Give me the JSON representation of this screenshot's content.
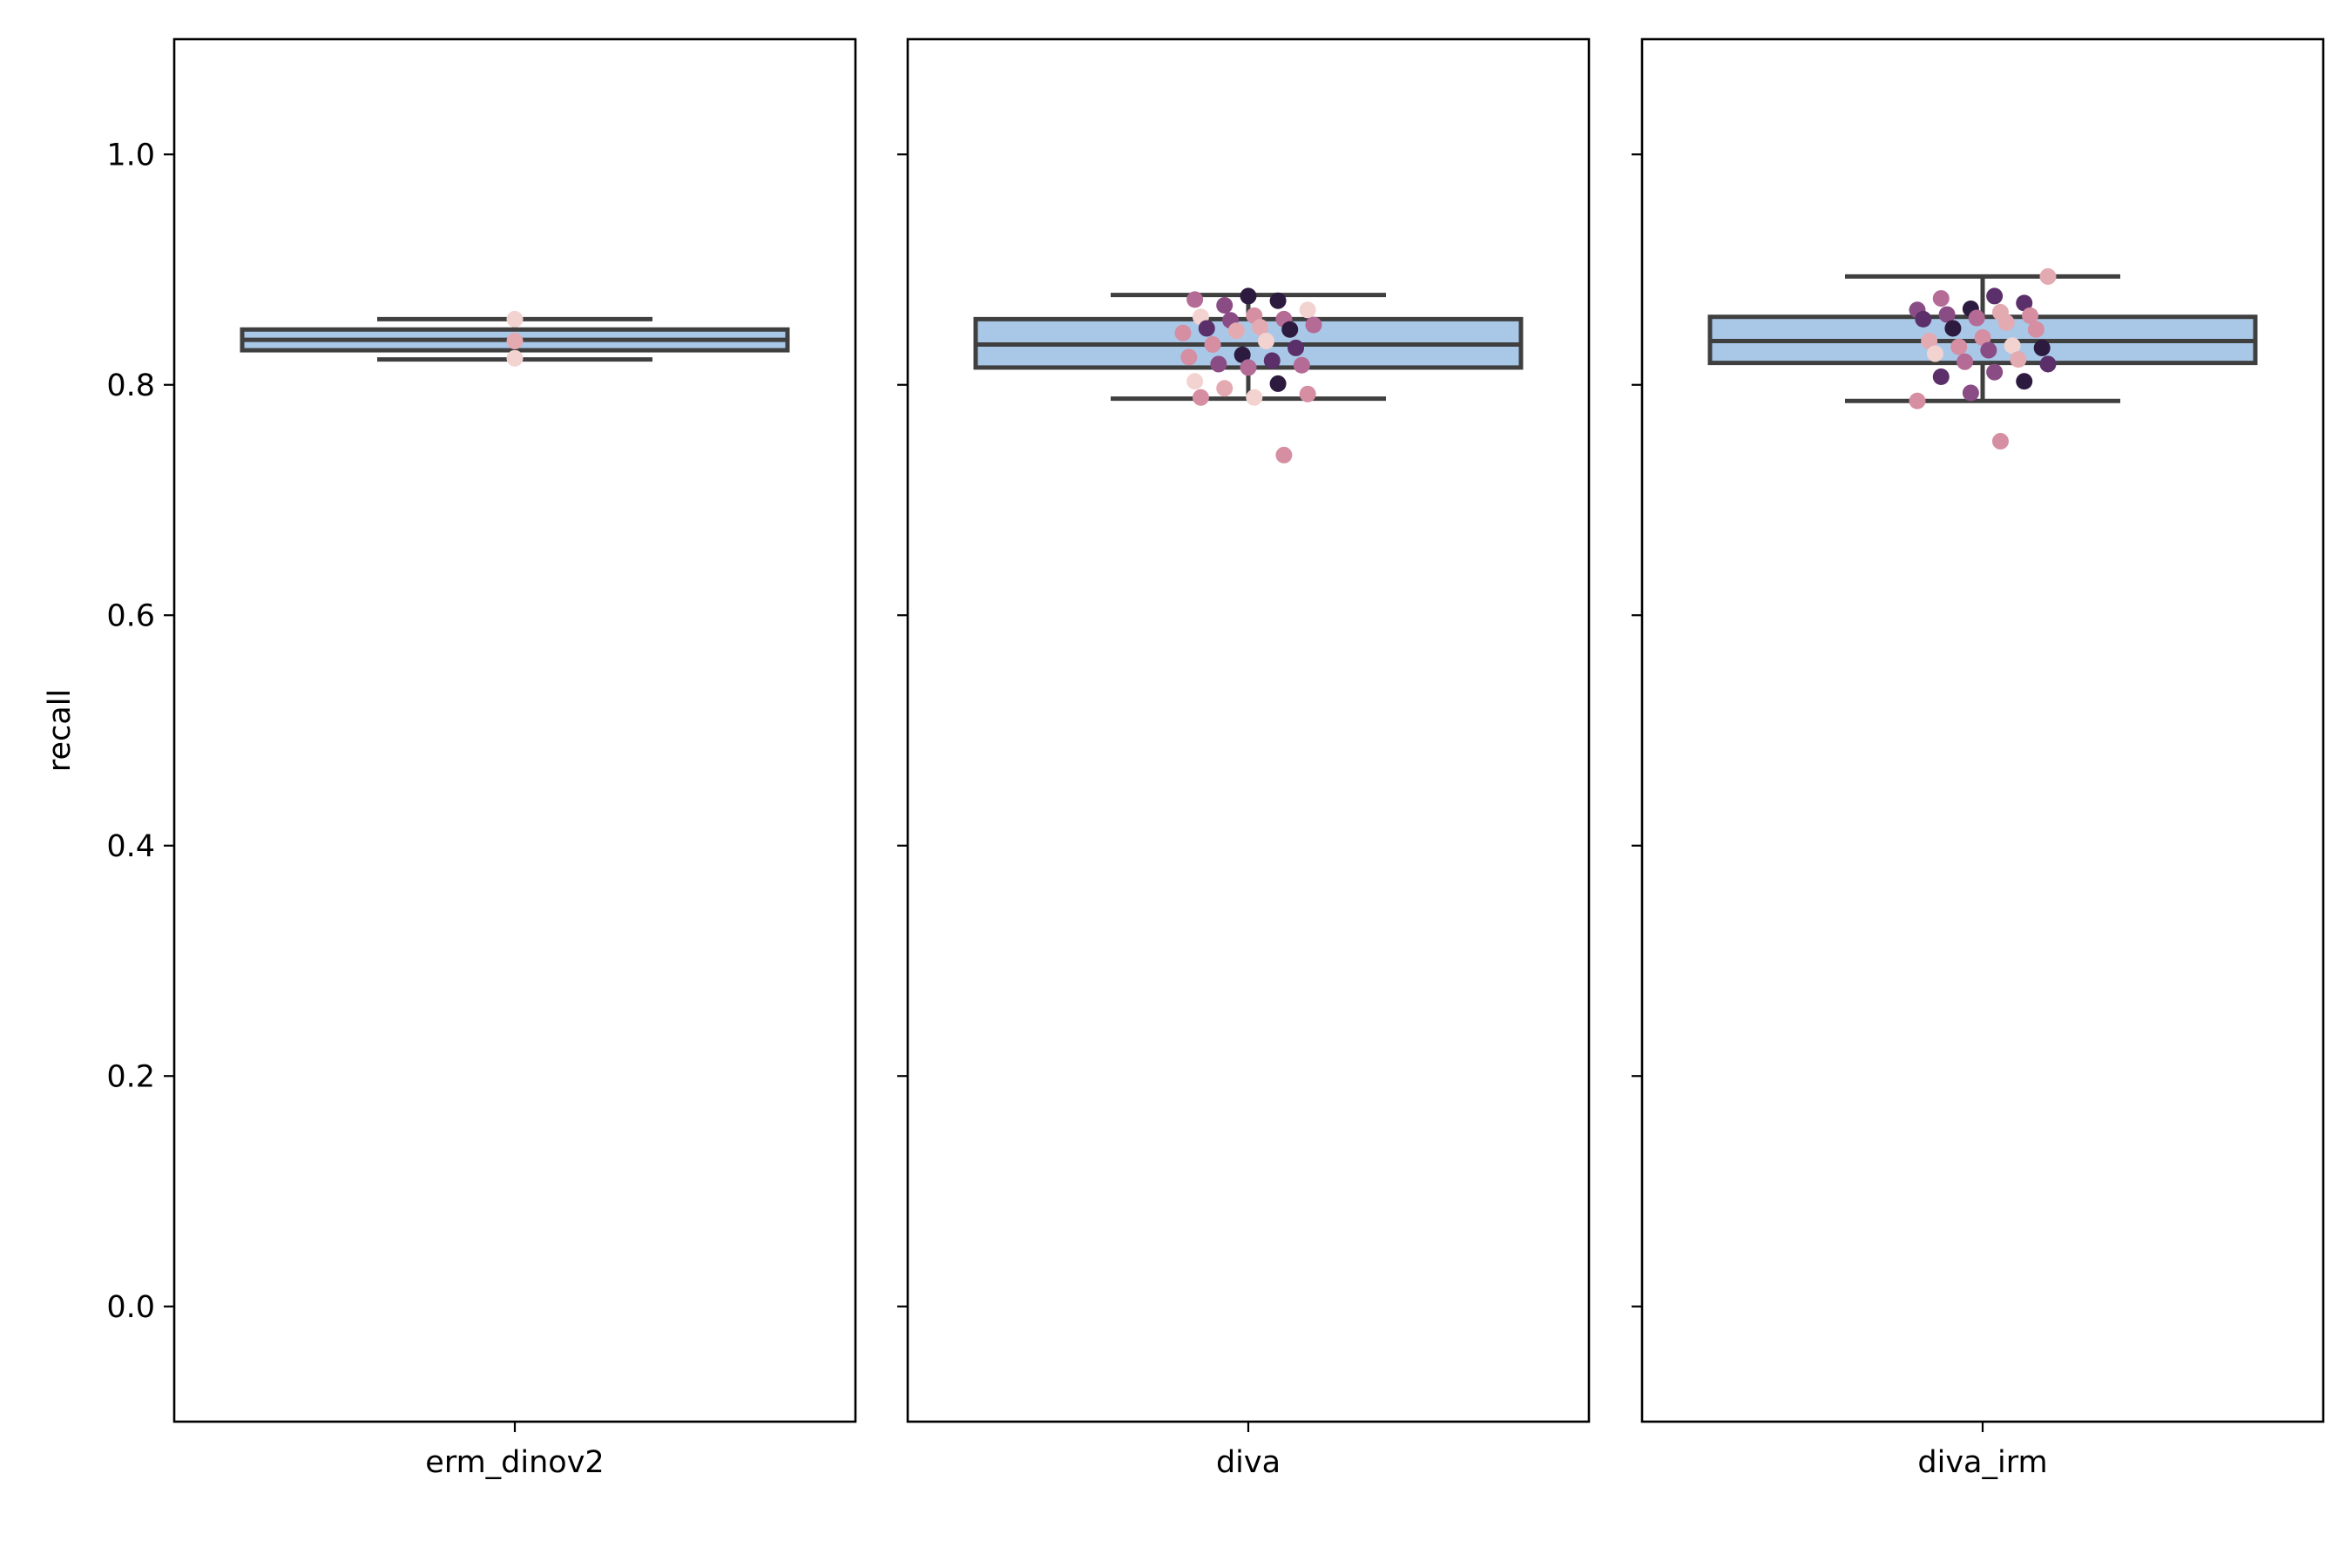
{
  "chart_data": {
    "type": "box",
    "ylabel": "recall",
    "ylim": [
      -0.1,
      1.1
    ],
    "yticks": [
      "0.0",
      "0.2",
      "0.4",
      "0.6",
      "0.8",
      "1.0"
    ],
    "grid": false,
    "sharey": true,
    "box_color": "#a9c8e8",
    "edge_color": "#3f3f3f",
    "point_palette": [
      "#f2d3d0",
      "#e4aab1",
      "#d58ea2",
      "#b46b95",
      "#8a4c85",
      "#5b2f6a",
      "#2d1a3f"
    ],
    "panels": [
      {
        "category": "erm_dinov2",
        "box": {
          "whisker_low": 0.822,
          "q1": 0.83,
          "median": 0.839,
          "q3": 0.848,
          "whisker_high": 0.857
        },
        "points": [
          {
            "y": 0.857,
            "c": 0
          },
          {
            "y": 0.838,
            "c": 1
          },
          {
            "y": 0.823,
            "c": 0
          }
        ]
      },
      {
        "category": "diva",
        "box": {
          "whisker_low": 0.788,
          "q1": 0.815,
          "median": 0.835,
          "q3": 0.857,
          "whisker_high": 0.878
        },
        "points": [
          {
            "y": 0.877,
            "c": 6
          },
          {
            "y": 0.874,
            "c": 3
          },
          {
            "y": 0.873,
            "c": 6
          },
          {
            "y": 0.869,
            "c": 4
          },
          {
            "y": 0.865,
            "c": 0
          },
          {
            "y": 0.86,
            "c": 2
          },
          {
            "y": 0.859,
            "c": 0
          },
          {
            "y": 0.857,
            "c": 3
          },
          {
            "y": 0.856,
            "c": 4
          },
          {
            "y": 0.852,
            "c": 3
          },
          {
            "y": 0.85,
            "c": 1
          },
          {
            "y": 0.849,
            "c": 5
          },
          {
            "y": 0.848,
            "c": 6
          },
          {
            "y": 0.847,
            "c": 1
          },
          {
            "y": 0.845,
            "c": 2
          },
          {
            "y": 0.838,
            "c": 0
          },
          {
            "y": 0.835,
            "c": 2
          },
          {
            "y": 0.832,
            "c": 5
          },
          {
            "y": 0.826,
            "c": 6
          },
          {
            "y": 0.824,
            "c": 2
          },
          {
            "y": 0.821,
            "c": 5
          },
          {
            "y": 0.818,
            "c": 4
          },
          {
            "y": 0.817,
            "c": 3
          },
          {
            "y": 0.815,
            "c": 3
          },
          {
            "y": 0.803,
            "c": 0
          },
          {
            "y": 0.801,
            "c": 6
          },
          {
            "y": 0.797,
            "c": 1
          },
          {
            "y": 0.792,
            "c": 2
          },
          {
            "y": 0.789,
            "c": 0
          },
          {
            "y": 0.789,
            "c": 2
          },
          {
            "y": 0.739,
            "c": 2
          }
        ]
      },
      {
        "category": "diva_irm",
        "box": {
          "whisker_low": 0.786,
          "q1": 0.819,
          "median": 0.838,
          "q3": 0.859,
          "whisker_high": 0.894
        },
        "points": [
          {
            "y": 0.894,
            "c": 1
          },
          {
            "y": 0.877,
            "c": 5
          },
          {
            "y": 0.875,
            "c": 3
          },
          {
            "y": 0.871,
            "c": 5
          },
          {
            "y": 0.866,
            "c": 6
          },
          {
            "y": 0.865,
            "c": 4
          },
          {
            "y": 0.863,
            "c": 1
          },
          {
            "y": 0.861,
            "c": 4
          },
          {
            "y": 0.86,
            "c": 2
          },
          {
            "y": 0.858,
            "c": 3
          },
          {
            "y": 0.857,
            "c": 5
          },
          {
            "y": 0.854,
            "c": 1
          },
          {
            "y": 0.849,
            "c": 6
          },
          {
            "y": 0.848,
            "c": 2
          },
          {
            "y": 0.841,
            "c": 2
          },
          {
            "y": 0.838,
            "c": 1
          },
          {
            "y": 0.834,
            "c": 0
          },
          {
            "y": 0.833,
            "c": 2
          },
          {
            "y": 0.832,
            "c": 6
          },
          {
            "y": 0.83,
            "c": 4
          },
          {
            "y": 0.827,
            "c": 0
          },
          {
            "y": 0.822,
            "c": 1
          },
          {
            "y": 0.82,
            "c": 3
          },
          {
            "y": 0.818,
            "c": 5
          },
          {
            "y": 0.811,
            "c": 4
          },
          {
            "y": 0.807,
            "c": 5
          },
          {
            "y": 0.803,
            "c": 6
          },
          {
            "y": 0.793,
            "c": 4
          },
          {
            "y": 0.786,
            "c": 2
          },
          {
            "y": 0.751,
            "c": 2
          }
        ]
      }
    ]
  }
}
